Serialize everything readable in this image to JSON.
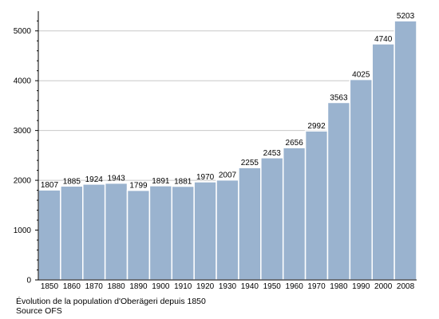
{
  "chart_data": {
    "type": "bar",
    "categories": [
      "1850",
      "1860",
      "1870",
      "1880",
      "1890",
      "1900",
      "1910",
      "1920",
      "1930",
      "1940",
      "1950",
      "1960",
      "1970",
      "1980",
      "1990",
      "2000",
      "2008"
    ],
    "values": [
      1807,
      1885,
      1924,
      1943,
      1799,
      1891,
      1881,
      1970,
      2007,
      2255,
      2453,
      2656,
      2992,
      3563,
      4025,
      4740,
      5203
    ],
    "ylim": [
      0,
      5300
    ],
    "yticks": [
      0,
      1000,
      2000,
      3000,
      4000,
      5000
    ],
    "minor_step": 200,
    "grid": true,
    "xlabel": "",
    "ylabel": "",
    "colors": {
      "bar": "#9ab3cf",
      "bar_edge": "#ffffff",
      "grid": "#c8c8c8",
      "axis": "#000000"
    }
  },
  "caption": {
    "line1": "Évolution de la population d'Oberägeri depuis 1850",
    "line2": "Source OFS"
  }
}
